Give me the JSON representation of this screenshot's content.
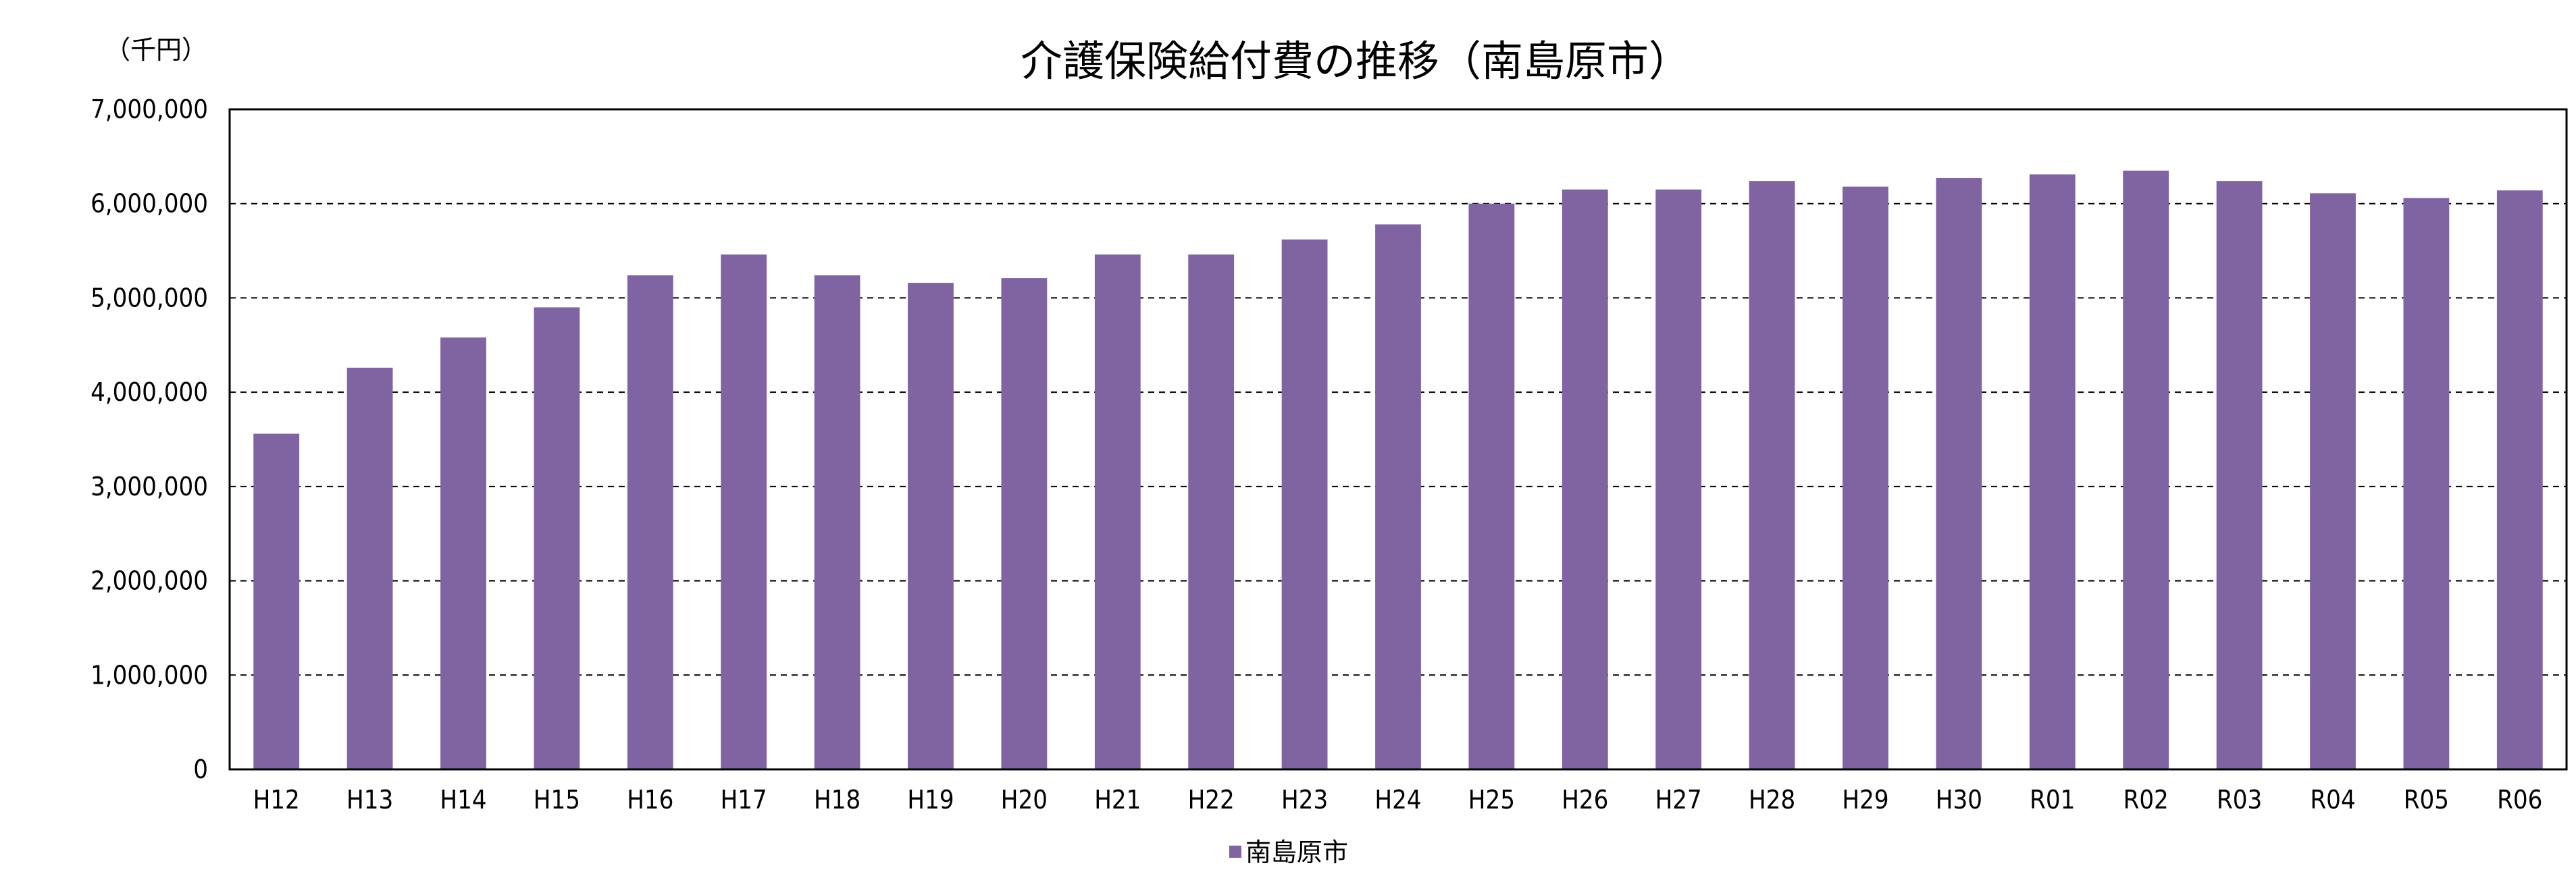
{
  "chart_data": {
    "type": "bar",
    "title": "介護保険給付費の推移（南島原市）",
    "unit_label": "（千円）",
    "categories": [
      "H12",
      "H13",
      "H14",
      "H15",
      "H16",
      "H17",
      "H18",
      "H19",
      "H20",
      "H21",
      "H22",
      "H23",
      "H24",
      "H25",
      "H26",
      "H27",
      "H28",
      "H29",
      "H30",
      "R01",
      "R02",
      "R03",
      "R04",
      "R05",
      "R06"
    ],
    "series": [
      {
        "name": "南島原市",
        "color": "#8064a2",
        "values": [
          3560000,
          4260000,
          4580000,
          4900000,
          5240000,
          5460000,
          5240000,
          5160000,
          5210000,
          5460000,
          5460000,
          5620000,
          5780000,
          6000000,
          6150000,
          6150000,
          6240000,
          6180000,
          6270000,
          6310000,
          6350000,
          6240000,
          6110000,
          6060000,
          6140000
        ]
      }
    ],
    "y_ticks": [
      "0",
      "1,000,000",
      "2,000,000",
      "3,000,000",
      "4,000,000",
      "5,000,000",
      "6,000,000",
      "7,000,000"
    ],
    "ylim": [
      0,
      7000000
    ],
    "grid": "dashed horizontal",
    "legend_position": "bottom"
  }
}
